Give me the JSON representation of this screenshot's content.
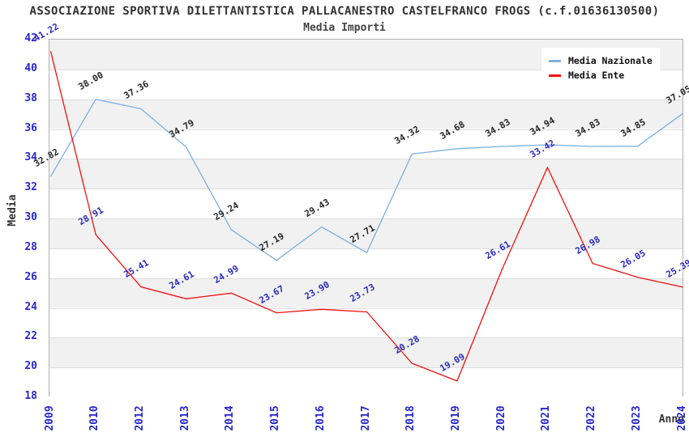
{
  "chart_data": {
    "type": "line",
    "title": "ASSOCIAZIONE SPORTIVA DILETTANTISTICA PALLACANESTRO CASTELFRANCO FROGS (c.f.01636130500)",
    "subtitle": "Media Importi",
    "xlabel": "Anno",
    "ylabel": "Media",
    "categories": [
      "2009",
      "2010",
      "2012",
      "2013",
      "2014",
      "2015",
      "2016",
      "2017",
      "2018",
      "2019",
      "2020",
      "2021",
      "2022",
      "2023",
      "2024"
    ],
    "series": [
      {
        "name": "Media Nazionale",
        "color": "#7cb0e2",
        "label_color": "#262626",
        "values": [
          32.82,
          38.0,
          37.36,
          34.79,
          29.24,
          27.19,
          29.43,
          27.71,
          34.32,
          34.68,
          34.83,
          34.94,
          34.83,
          34.85,
          37.05
        ]
      },
      {
        "name": "Media Ente",
        "color": "#ee1111",
        "label_color": "#2b2bbf",
        "values": [
          41.22,
          28.91,
          25.41,
          24.61,
          24.99,
          23.67,
          23.9,
          23.73,
          20.28,
          19.09,
          26.61,
          33.42,
          26.98,
          26.05,
          25.39
        ]
      }
    ],
    "ylim": [
      18,
      42
    ],
    "ytick_step": 2,
    "grid": true,
    "band_colors": [
      "#f1f1f1",
      "#ffffff"
    ],
    "tick_color": "#2727cd",
    "legend_position": "top-right"
  }
}
